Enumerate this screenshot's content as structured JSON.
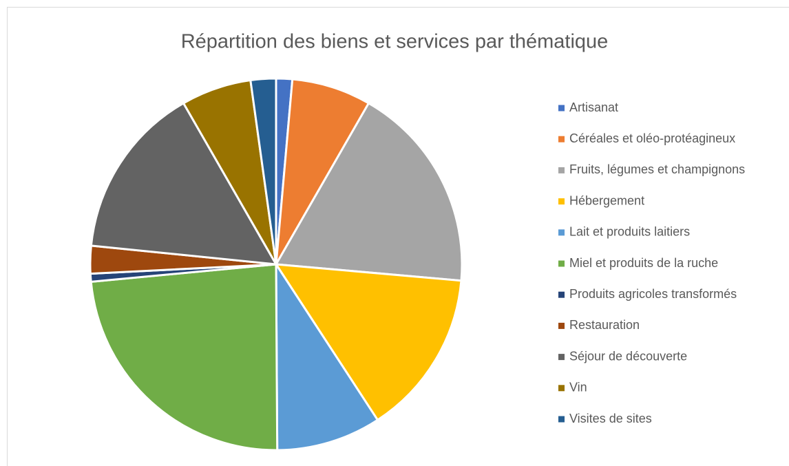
{
  "chart_data": {
    "type": "pie",
    "title": "Répartition des biens et services par thématique",
    "categories": [
      "Artisanat",
      "Céréales et oléo-protéagineux",
      "Fruits, légumes et champignons",
      "Hébergement",
      "Lait et produits laitiers",
      "Miel et produits de la ruche",
      "Produits agricoles transformés",
      "Restauration",
      "Séjour de découverte",
      "Vin",
      "Visites de sites"
    ],
    "values": [
      1.4,
      6.9,
      18.1,
      14.4,
      9.1,
      23.6,
      0.7,
      2.4,
      15.1,
      6.1,
      2.2
    ],
    "colors": [
      "#4472c4",
      "#ed7d31",
      "#a5a5a5",
      "#ffc000",
      "#5b9bd5",
      "#70ad47",
      "#264478",
      "#9e480e",
      "#636363",
      "#997300",
      "#255e91"
    ],
    "legend": "right"
  }
}
